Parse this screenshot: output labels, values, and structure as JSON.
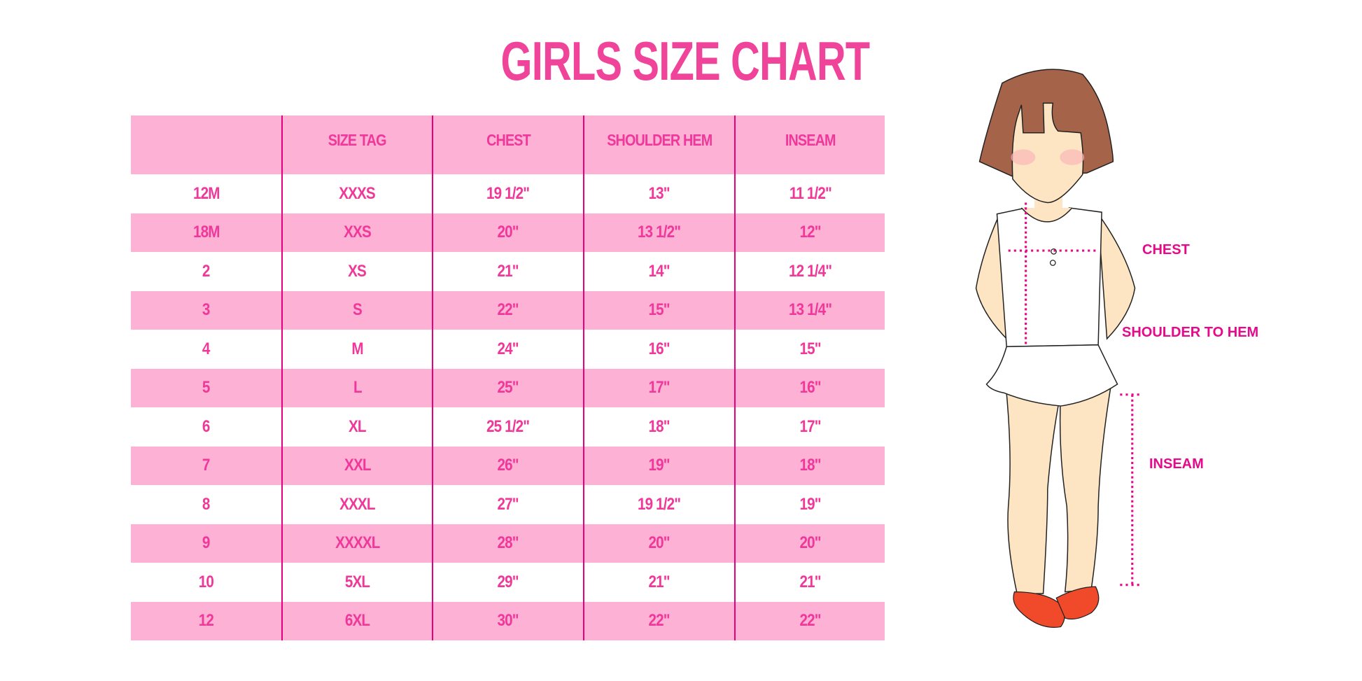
{
  "title": "GIRLS SIZE CHART",
  "table": {
    "headers": [
      "",
      "SIZE TAG",
      "CHEST",
      "SHOULDER HEM",
      "INSEAM"
    ],
    "rows": [
      [
        "12M",
        "XXXS",
        "19 1/2\"",
        "13\"",
        "11 1/2\""
      ],
      [
        "18M",
        "XXS",
        "20\"",
        "13 1/2\"",
        "12\""
      ],
      [
        "2",
        "XS",
        "21\"",
        "14\"",
        "12 1/4\""
      ],
      [
        "3",
        "S",
        "22\"",
        "15\"",
        "13 1/4\""
      ],
      [
        "4",
        "M",
        "24\"",
        "16\"",
        "15\""
      ],
      [
        "5",
        "L",
        "25\"",
        "17\"",
        "16\""
      ],
      [
        "6",
        "XL",
        "25 1/2\"",
        "18\"",
        "17\""
      ],
      [
        "7",
        "XXL",
        "26\"",
        "19\"",
        "18\""
      ],
      [
        "8",
        "XXXL",
        "27\"",
        "19 1/2\"",
        "19\""
      ],
      [
        "9",
        "XXXXL",
        "28\"",
        "20\"",
        "20\""
      ],
      [
        "10",
        "5XL",
        "29\"",
        "21\"",
        "21\""
      ],
      [
        "12",
        "6XL",
        "30\"",
        "22\"",
        "22\""
      ]
    ]
  },
  "figure": {
    "labels": {
      "chest": "CHEST",
      "shoulder_to_hem": "SHOULDER TO HEM",
      "inseam": "INSEAM"
    }
  },
  "colors": {
    "title": "#F0449A",
    "text": "#F0389A",
    "row_pink": "#FDB1D5",
    "divider": "#E6007E",
    "measure": "#E8088A"
  }
}
